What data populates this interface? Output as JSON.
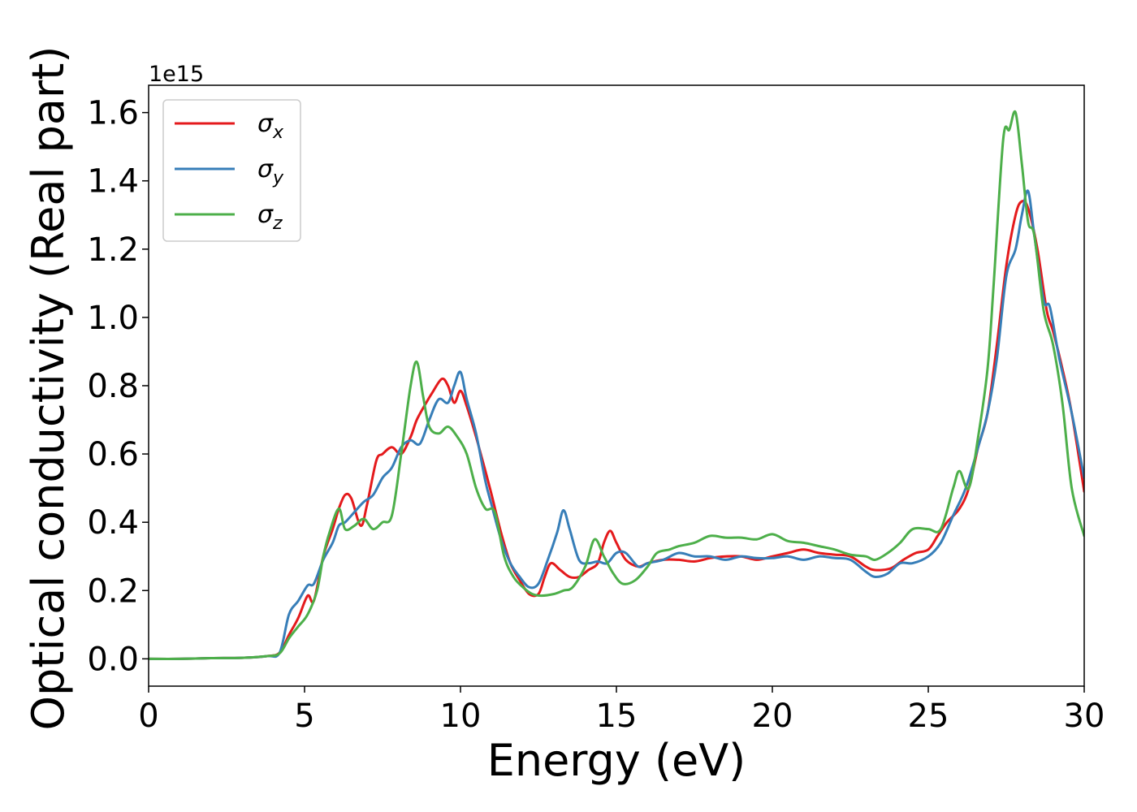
{
  "chart_data": {
    "type": "line",
    "title": "",
    "xlabel": "Energy (eV)",
    "ylabel": "Optical conductivity (Real part)",
    "y_offset_label": "1e15",
    "xlim": [
      0,
      30
    ],
    "ylim": [
      -0.08,
      1.68
    ],
    "xticks": [
      "0",
      "5",
      "10",
      "15",
      "20",
      "25",
      "30"
    ],
    "yticks": [
      "0.0",
      "0.2",
      "0.4",
      "0.6",
      "0.8",
      "1.0",
      "1.2",
      "1.4",
      "1.6"
    ],
    "grid": false,
    "legend_position": "top-left",
    "series": [
      {
        "name": "σx",
        "symbol": "σ",
        "subscript": "x",
        "color": "#e41a1c",
        "points": [
          [
            0,
            0.0
          ],
          [
            1,
            0.0
          ],
          [
            2,
            0.002
          ],
          [
            3,
            0.003
          ],
          [
            3.8,
            0.008
          ],
          [
            4.2,
            0.018
          ],
          [
            4.5,
            0.07
          ],
          [
            4.8,
            0.12
          ],
          [
            5.1,
            0.185
          ],
          [
            5.3,
            0.17
          ],
          [
            5.6,
            0.3
          ],
          [
            5.9,
            0.38
          ],
          [
            6.1,
            0.44
          ],
          [
            6.3,
            0.48
          ],
          [
            6.5,
            0.47
          ],
          [
            6.8,
            0.39
          ],
          [
            7.0,
            0.45
          ],
          [
            7.3,
            0.58
          ],
          [
            7.5,
            0.6
          ],
          [
            7.8,
            0.62
          ],
          [
            8.1,
            0.6
          ],
          [
            8.4,
            0.65
          ],
          [
            8.6,
            0.7
          ],
          [
            8.9,
            0.75
          ],
          [
            9.1,
            0.78
          ],
          [
            9.4,
            0.82
          ],
          [
            9.6,
            0.8
          ],
          [
            9.8,
            0.75
          ],
          [
            10.0,
            0.785
          ],
          [
            10.2,
            0.74
          ],
          [
            10.5,
            0.65
          ],
          [
            10.8,
            0.55
          ],
          [
            11.0,
            0.48
          ],
          [
            11.3,
            0.37
          ],
          [
            11.6,
            0.28
          ],
          [
            11.9,
            0.23
          ],
          [
            12.2,
            0.19
          ],
          [
            12.5,
            0.19
          ],
          [
            12.7,
            0.24
          ],
          [
            12.9,
            0.28
          ],
          [
            13.2,
            0.26
          ],
          [
            13.5,
            0.24
          ],
          [
            13.8,
            0.24
          ],
          [
            14.1,
            0.26
          ],
          [
            14.4,
            0.28
          ],
          [
            14.6,
            0.34
          ],
          [
            14.8,
            0.375
          ],
          [
            15.0,
            0.34
          ],
          [
            15.3,
            0.29
          ],
          [
            15.7,
            0.27
          ],
          [
            16.0,
            0.28
          ],
          [
            16.5,
            0.29
          ],
          [
            17.0,
            0.29
          ],
          [
            17.5,
            0.285
          ],
          [
            18.0,
            0.295
          ],
          [
            18.5,
            0.3
          ],
          [
            19.0,
            0.3
          ],
          [
            19.5,
            0.29
          ],
          [
            20.0,
            0.3
          ],
          [
            20.5,
            0.31
          ],
          [
            21.0,
            0.32
          ],
          [
            21.5,
            0.31
          ],
          [
            22.0,
            0.305
          ],
          [
            22.5,
            0.3
          ],
          [
            23.0,
            0.27
          ],
          [
            23.3,
            0.26
          ],
          [
            23.8,
            0.265
          ],
          [
            24.2,
            0.29
          ],
          [
            24.6,
            0.31
          ],
          [
            25.0,
            0.32
          ],
          [
            25.3,
            0.36
          ],
          [
            25.6,
            0.4
          ],
          [
            26.0,
            0.44
          ],
          [
            26.3,
            0.5
          ],
          [
            26.6,
            0.62
          ],
          [
            26.9,
            0.72
          ],
          [
            27.2,
            0.92
          ],
          [
            27.5,
            1.15
          ],
          [
            27.8,
            1.3
          ],
          [
            28.0,
            1.34
          ],
          [
            28.2,
            1.32
          ],
          [
            28.5,
            1.2
          ],
          [
            28.8,
            1.02
          ],
          [
            29.0,
            0.96
          ],
          [
            29.3,
            0.85
          ],
          [
            29.6,
            0.72
          ],
          [
            30.0,
            0.49
          ]
        ]
      },
      {
        "name": "σy",
        "symbol": "σ",
        "subscript": "y",
        "color": "#377eb8",
        "points": [
          [
            0,
            0.0
          ],
          [
            1,
            0.0
          ],
          [
            2,
            0.002
          ],
          [
            3,
            0.003
          ],
          [
            3.8,
            0.008
          ],
          [
            4.2,
            0.018
          ],
          [
            4.5,
            0.13
          ],
          [
            4.8,
            0.17
          ],
          [
            5.1,
            0.215
          ],
          [
            5.3,
            0.22
          ],
          [
            5.6,
            0.29
          ],
          [
            5.9,
            0.34
          ],
          [
            6.1,
            0.39
          ],
          [
            6.3,
            0.4
          ],
          [
            6.6,
            0.43
          ],
          [
            6.9,
            0.46
          ],
          [
            7.2,
            0.48
          ],
          [
            7.5,
            0.53
          ],
          [
            7.8,
            0.56
          ],
          [
            8.1,
            0.62
          ],
          [
            8.4,
            0.64
          ],
          [
            8.7,
            0.63
          ],
          [
            9.0,
            0.7
          ],
          [
            9.3,
            0.76
          ],
          [
            9.6,
            0.75
          ],
          [
            9.8,
            0.8
          ],
          [
            10.0,
            0.84
          ],
          [
            10.2,
            0.76
          ],
          [
            10.5,
            0.66
          ],
          [
            10.8,
            0.52
          ],
          [
            11.0,
            0.45
          ],
          [
            11.3,
            0.35
          ],
          [
            11.6,
            0.28
          ],
          [
            11.9,
            0.24
          ],
          [
            12.2,
            0.21
          ],
          [
            12.5,
            0.22
          ],
          [
            12.8,
            0.29
          ],
          [
            13.1,
            0.37
          ],
          [
            13.3,
            0.435
          ],
          [
            13.5,
            0.38
          ],
          [
            13.8,
            0.29
          ],
          [
            14.1,
            0.28
          ],
          [
            14.4,
            0.285
          ],
          [
            14.7,
            0.28
          ],
          [
            15.0,
            0.31
          ],
          [
            15.3,
            0.31
          ],
          [
            15.7,
            0.27
          ],
          [
            16.0,
            0.28
          ],
          [
            16.5,
            0.29
          ],
          [
            17.0,
            0.31
          ],
          [
            17.5,
            0.3
          ],
          [
            18.0,
            0.3
          ],
          [
            18.5,
            0.29
          ],
          [
            19.0,
            0.3
          ],
          [
            19.5,
            0.295
          ],
          [
            20.0,
            0.295
          ],
          [
            20.5,
            0.3
          ],
          [
            21.0,
            0.29
          ],
          [
            21.5,
            0.3
          ],
          [
            22.0,
            0.295
          ],
          [
            22.5,
            0.29
          ],
          [
            23.0,
            0.255
          ],
          [
            23.3,
            0.24
          ],
          [
            23.7,
            0.25
          ],
          [
            24.1,
            0.28
          ],
          [
            24.5,
            0.28
          ],
          [
            25.0,
            0.3
          ],
          [
            25.4,
            0.34
          ],
          [
            25.8,
            0.42
          ],
          [
            26.2,
            0.5
          ],
          [
            26.6,
            0.62
          ],
          [
            26.9,
            0.72
          ],
          [
            27.2,
            0.88
          ],
          [
            27.5,
            1.12
          ],
          [
            27.8,
            1.2
          ],
          [
            28.0,
            1.3
          ],
          [
            28.2,
            1.37
          ],
          [
            28.4,
            1.24
          ],
          [
            28.7,
            1.05
          ],
          [
            28.9,
            1.03
          ],
          [
            29.2,
            0.88
          ],
          [
            29.6,
            0.72
          ],
          [
            30.0,
            0.53
          ]
        ]
      },
      {
        "name": "σz",
        "symbol": "σ",
        "subscript": "z",
        "color": "#4daf4a",
        "points": [
          [
            0,
            0.0
          ],
          [
            1,
            0.0
          ],
          [
            2,
            0.002
          ],
          [
            3,
            0.003
          ],
          [
            3.8,
            0.008
          ],
          [
            4.2,
            0.016
          ],
          [
            4.5,
            0.06
          ],
          [
            4.8,
            0.095
          ],
          [
            5.1,
            0.13
          ],
          [
            5.4,
            0.2
          ],
          [
            5.6,
            0.3
          ],
          [
            5.8,
            0.37
          ],
          [
            6.1,
            0.44
          ],
          [
            6.3,
            0.38
          ],
          [
            6.6,
            0.39
          ],
          [
            6.9,
            0.41
          ],
          [
            7.2,
            0.38
          ],
          [
            7.5,
            0.4
          ],
          [
            7.8,
            0.42
          ],
          [
            8.1,
            0.6
          ],
          [
            8.4,
            0.8
          ],
          [
            8.6,
            0.87
          ],
          [
            8.8,
            0.77
          ],
          [
            9.0,
            0.68
          ],
          [
            9.3,
            0.66
          ],
          [
            9.6,
            0.68
          ],
          [
            9.9,
            0.65
          ],
          [
            10.2,
            0.6
          ],
          [
            10.5,
            0.5
          ],
          [
            10.8,
            0.44
          ],
          [
            11.1,
            0.43
          ],
          [
            11.4,
            0.3
          ],
          [
            11.7,
            0.24
          ],
          [
            12.0,
            0.21
          ],
          [
            12.3,
            0.19
          ],
          [
            12.6,
            0.185
          ],
          [
            13.0,
            0.19
          ],
          [
            13.3,
            0.2
          ],
          [
            13.6,
            0.21
          ],
          [
            14.0,
            0.27
          ],
          [
            14.3,
            0.35
          ],
          [
            14.6,
            0.3
          ],
          [
            14.9,
            0.25
          ],
          [
            15.2,
            0.22
          ],
          [
            15.6,
            0.23
          ],
          [
            16.0,
            0.27
          ],
          [
            16.3,
            0.31
          ],
          [
            16.7,
            0.32
          ],
          [
            17.0,
            0.33
          ],
          [
            17.5,
            0.34
          ],
          [
            18.0,
            0.36
          ],
          [
            18.5,
            0.355
          ],
          [
            19.0,
            0.355
          ],
          [
            19.5,
            0.35
          ],
          [
            20.0,
            0.365
          ],
          [
            20.5,
            0.345
          ],
          [
            21.0,
            0.34
          ],
          [
            21.5,
            0.33
          ],
          [
            22.0,
            0.32
          ],
          [
            22.5,
            0.305
          ],
          [
            23.0,
            0.3
          ],
          [
            23.3,
            0.29
          ],
          [
            23.7,
            0.31
          ],
          [
            24.1,
            0.34
          ],
          [
            24.5,
            0.38
          ],
          [
            25.0,
            0.38
          ],
          [
            25.4,
            0.38
          ],
          [
            25.8,
            0.5
          ],
          [
            26.0,
            0.55
          ],
          [
            26.3,
            0.5
          ],
          [
            26.6,
            0.65
          ],
          [
            26.9,
            0.85
          ],
          [
            27.1,
            1.1
          ],
          [
            27.4,
            1.52
          ],
          [
            27.6,
            1.55
          ],
          [
            27.8,
            1.6
          ],
          [
            28.0,
            1.45
          ],
          [
            28.2,
            1.28
          ],
          [
            28.4,
            1.24
          ],
          [
            28.7,
            1.02
          ],
          [
            29.0,
            0.92
          ],
          [
            29.3,
            0.75
          ],
          [
            29.6,
            0.5
          ],
          [
            30.0,
            0.36
          ]
        ]
      }
    ]
  }
}
